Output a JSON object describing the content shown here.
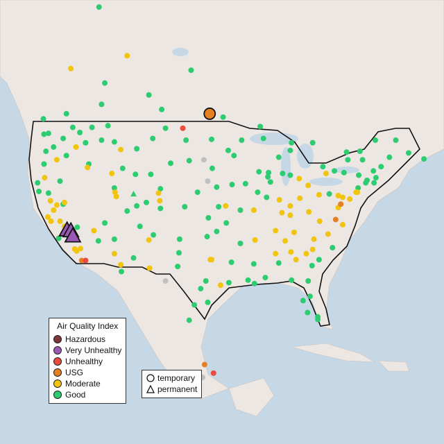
{
  "legend": {
    "title": "Air Quality Index",
    "categories": [
      {
        "label": "Hazardous",
        "color": "#7d3535"
      },
      {
        "label": "Very Unhealthy",
        "color": "#9b59b6"
      },
      {
        "label": "Unhealthy",
        "color": "#e74c3c"
      },
      {
        "label": "USG",
        "color": "#e67e22"
      },
      {
        "label": "Moderate",
        "color": "#f1c40f"
      },
      {
        "label": "Good",
        "color": "#2ecc71"
      }
    ],
    "no_data_color": "#c0c0c0"
  },
  "shape_legend": {
    "items": [
      {
        "label": "temporary",
        "icon": "circle-icon"
      },
      {
        "label": "permanent",
        "icon": "triangle-icon"
      }
    ]
  },
  "map": {
    "water_color": "#c6d7e6",
    "land_color": "#ede7e3",
    "sites": [
      [
        -123,
        47.5,
        "g",
        "c"
      ],
      [
        -122.3,
        47.6,
        "g",
        "c"
      ],
      [
        -122.7,
        45.5,
        "g",
        "c"
      ],
      [
        -123,
        44,
        "g",
        "c"
      ],
      [
        -121.5,
        46,
        "g",
        "c"
      ],
      [
        -120,
        47,
        "g",
        "c"
      ],
      [
        -117.4,
        47.7,
        "g",
        "c"
      ],
      [
        -116.5,
        46.5,
        "g",
        "c"
      ],
      [
        -118,
        46,
        "m",
        "c"
      ],
      [
        -119.5,
        45,
        "g",
        "c"
      ],
      [
        -121,
        44.5,
        "m",
        "c"
      ],
      [
        -122.9,
        42.4,
        "m",
        "c"
      ],
      [
        -120.5,
        42,
        "g",
        "c"
      ],
      [
        -116,
        44,
        "g",
        "c"
      ],
      [
        -114,
        46.8,
        "g",
        "c"
      ],
      [
        -112,
        46.6,
        "g",
        "c"
      ],
      [
        -111,
        45.7,
        "m",
        "c"
      ],
      [
        -108.5,
        45.8,
        "g",
        "c"
      ],
      [
        -106,
        47,
        "g",
        "c"
      ],
      [
        -104,
        48.2,
        "g",
        "c"
      ],
      [
        -113,
        48.5,
        "g",
        "c"
      ],
      [
        -115.5,
        48.3,
        "g",
        "c"
      ],
      [
        -118.5,
        48.3,
        "g",
        "c"
      ],
      [
        -122.4,
        37.8,
        "m",
        "c"
      ],
      [
        -121.9,
        37.3,
        "m",
        "c"
      ],
      [
        -121.5,
        38.6,
        "m",
        "c"
      ],
      [
        -120.5,
        37.3,
        "m",
        "c"
      ],
      [
        -119.8,
        36.7,
        "m",
        "c"
      ],
      [
        -119,
        35.4,
        "m",
        "c"
      ],
      [
        -119.4,
        36.3,
        "v",
        "t"
      ],
      [
        -118.8,
        36.2,
        "v",
        "t"
      ],
      [
        -118.5,
        35.6,
        "v",
        "t"
      ],
      [
        -119.7,
        36.0,
        "u",
        "c"
      ],
      [
        -118.2,
        34.05,
        "m",
        "c"
      ],
      [
        -117.9,
        33.8,
        "m",
        "c"
      ],
      [
        -117.3,
        34.1,
        "m",
        "c"
      ],
      [
        -117.1,
        32.7,
        "u",
        "c"
      ],
      [
        -116.5,
        32.7,
        "h",
        "c"
      ],
      [
        -120.7,
        35.3,
        "g",
        "c"
      ],
      [
        -122,
        39.7,
        "m",
        "c"
      ],
      [
        -122.3,
        40.6,
        "g",
        "c"
      ],
      [
        -123.8,
        40.8,
        "g",
        "c"
      ],
      [
        -124,
        41.8,
        "g",
        "c"
      ],
      [
        -121,
        39.2,
        "m",
        "c"
      ],
      [
        -120,
        39.3,
        "g",
        "c"
      ],
      [
        -119.8,
        39.5,
        "m",
        "c"
      ],
      [
        -117.8,
        36.6,
        "g",
        "c"
      ],
      [
        -115.2,
        36.2,
        "m",
        "c"
      ],
      [
        -114.5,
        35,
        "g",
        "c"
      ],
      [
        -112,
        33.5,
        "m",
        "c"
      ],
      [
        -111,
        32.2,
        "m",
        "c"
      ],
      [
        -110.9,
        31.4,
        "g",
        "c"
      ],
      [
        -112,
        35.2,
        "g",
        "c"
      ],
      [
        -109,
        33,
        "g",
        "c"
      ],
      [
        -106.6,
        35.1,
        "m",
        "c"
      ],
      [
        -106.5,
        31.8,
        "m",
        "c"
      ],
      [
        -105.9,
        35.7,
        "g",
        "c"
      ],
      [
        -108,
        36.7,
        "g",
        "c"
      ],
      [
        -104.9,
        39.7,
        "m",
        "c"
      ],
      [
        -105.1,
        40.6,
        "m",
        "c"
      ],
      [
        -104.8,
        38.8,
        "g",
        "c"
      ],
      [
        -107,
        39.5,
        "g",
        "c"
      ],
      [
        -108.5,
        39.1,
        "g",
        "c"
      ],
      [
        -111.9,
        40.7,
        "m",
        "c"
      ],
      [
        -111.7,
        40.2,
        "m",
        "c"
      ],
      [
        -112,
        41.2,
        "g",
        "c"
      ],
      [
        -113.5,
        37.1,
        "g",
        "c"
      ],
      [
        -110,
        38.5,
        "g",
        "c"
      ],
      [
        -109,
        40.5,
        "g",
        "t"
      ],
      [
        -104.8,
        41.1,
        "g",
        "c"
      ],
      [
        -106.3,
        42.8,
        "g",
        "c"
      ],
      [
        -108.7,
        42.8,
        "g",
        "c"
      ],
      [
        -110.7,
        43.5,
        "g",
        "c"
      ],
      [
        -112.4,
        42.9,
        "m",
        "c"
      ],
      [
        -116.2,
        43.6,
        "m",
        "c"
      ],
      [
        -103.2,
        44.1,
        "g",
        "c"
      ],
      [
        -100.3,
        44.4,
        "g",
        "c"
      ],
      [
        -96.7,
        43.5,
        "g",
        "c"
      ],
      [
        -101.3,
        48.2,
        "h",
        "c"
      ],
      [
        -100.8,
        46.8,
        "g",
        "c"
      ],
      [
        -96.8,
        46.9,
        "g",
        "c"
      ],
      [
        -98,
        44.5,
        "n",
        "c"
      ],
      [
        -97.4,
        42,
        "n",
        "c"
      ],
      [
        -96,
        41.3,
        "g",
        "c"
      ],
      [
        -99,
        40.7,
        "g",
        "c"
      ],
      [
        -101,
        39,
        "g",
        "c"
      ],
      [
        -97.3,
        37.7,
        "g",
        "c"
      ],
      [
        -95.7,
        39,
        "g",
        "c"
      ],
      [
        -94.6,
        39.1,
        "m",
        "c"
      ],
      [
        -97.5,
        35.5,
        "g",
        "c"
      ],
      [
        -96,
        36.1,
        "g",
        "c"
      ],
      [
        -101.8,
        35.2,
        "g",
        "c"
      ],
      [
        -101.9,
        33.6,
        "g",
        "c"
      ],
      [
        -97,
        32.8,
        "m",
        "c"
      ],
      [
        -96.8,
        32.8,
        "m",
        "c"
      ],
      [
        -97.7,
        30.3,
        "g",
        "c"
      ],
      [
        -98.5,
        29.4,
        "g",
        "c"
      ],
      [
        -95.4,
        29.8,
        "m",
        "c"
      ],
      [
        -94.1,
        30.1,
        "g",
        "c"
      ],
      [
        -97.4,
        27.8,
        "g",
        "c"
      ],
      [
        -99.5,
        27.5,
        "g",
        "c"
      ],
      [
        -102.1,
        32,
        "g",
        "c"
      ],
      [
        -104,
        30.3,
        "n",
        "c"
      ],
      [
        -93.3,
        45,
        "g",
        "c"
      ],
      [
        -92.1,
        46.8,
        "g",
        "c"
      ],
      [
        -94.2,
        45.6,
        "g",
        "c"
      ],
      [
        -93.6,
        41.6,
        "g",
        "c"
      ],
      [
        -91.5,
        41.7,
        "g",
        "c"
      ],
      [
        -90.2,
        38.6,
        "m",
        "c"
      ],
      [
        -92.3,
        38.6,
        "g",
        "c"
      ],
      [
        -94.5,
        37.1,
        "g",
        "c"
      ],
      [
        -92.3,
        34.7,
        "g",
        "c"
      ],
      [
        -90,
        35.1,
        "m",
        "c"
      ],
      [
        -91.1,
        30.4,
        "g",
        "c"
      ],
      [
        -90.1,
        30,
        "g",
        "c"
      ],
      [
        -93.7,
        32.5,
        "g",
        "c"
      ],
      [
        -90.2,
        32.3,
        "g",
        "c"
      ],
      [
        -88.4,
        30.7,
        "g",
        "c"
      ],
      [
        -86.8,
        33.5,
        "m",
        "c"
      ],
      [
        -86.3,
        32.4,
        "g",
        "c"
      ],
      [
        -84.4,
        33.7,
        "m",
        "c"
      ],
      [
        -83.6,
        32.8,
        "m",
        "c"
      ],
      [
        -81.1,
        32.1,
        "g",
        "c"
      ],
      [
        -82,
        33.5,
        "m",
        "c"
      ],
      [
        -81,
        34,
        "m",
        "c"
      ],
      [
        -80,
        32.8,
        "g",
        "c"
      ],
      [
        -84.3,
        30.4,
        "g",
        "c"
      ],
      [
        -81.7,
        30.3,
        "g",
        "c"
      ],
      [
        -82.5,
        28,
        "g",
        "c"
      ],
      [
        -81.4,
        28.5,
        "g",
        "c"
      ],
      [
        -80.2,
        26.1,
        "g",
        "c"
      ],
      [
        -80.2,
        25.8,
        "g",
        "c"
      ],
      [
        -81.8,
        26.6,
        "g",
        "c"
      ],
      [
        -86.8,
        36.2,
        "m",
        "c"
      ],
      [
        -85.3,
        35,
        "m",
        "c"
      ],
      [
        -83.9,
        36,
        "m",
        "c"
      ],
      [
        -85.8,
        38.3,
        "m",
        "c"
      ],
      [
        -84.5,
        38,
        "m",
        "c"
      ],
      [
        -84.5,
        39.1,
        "m",
        "c"
      ],
      [
        -83,
        40,
        "m",
        "c"
      ],
      [
        -81.7,
        41.5,
        "m",
        "c"
      ],
      [
        -86.2,
        39.8,
        "m",
        "c"
      ],
      [
        -87.6,
        41.9,
        "g",
        "c"
      ],
      [
        -88,
        42.5,
        "g",
        "c"
      ],
      [
        -87.9,
        43,
        "g",
        "c"
      ],
      [
        -89.4,
        43.1,
        "g",
        "c"
      ],
      [
        -89.6,
        40.7,
        "g",
        "c"
      ],
      [
        -88.2,
        40.1,
        "g",
        "c"
      ],
      [
        -83.1,
        42.3,
        "m",
        "c"
      ],
      [
        -84.5,
        42.7,
        "g",
        "c"
      ],
      [
        -85.7,
        42.9,
        "g",
        "c"
      ],
      [
        -86.3,
        44.8,
        "g",
        "c"
      ],
      [
        -84.5,
        45.6,
        "g",
        "c"
      ],
      [
        -88.7,
        47,
        "g",
        "c"
      ],
      [
        -80,
        40.4,
        "m",
        "c"
      ],
      [
        -81.6,
        38.4,
        "m",
        "c"
      ],
      [
        -80.8,
        35.2,
        "m",
        "c"
      ],
      [
        -78.6,
        35.8,
        "m",
        "c"
      ],
      [
        -77.9,
        34.2,
        "g",
        "c"
      ],
      [
        -79.9,
        37.3,
        "m",
        "c"
      ],
      [
        -77.4,
        37.5,
        "u",
        "c"
      ],
      [
        -76.3,
        36.9,
        "m",
        "c"
      ],
      [
        -77,
        38.9,
        "m",
        "c"
      ],
      [
        -76.6,
        39.3,
        "u",
        "c"
      ],
      [
        -75.2,
        39.9,
        "m",
        "c"
      ],
      [
        -74.2,
        40.7,
        "m",
        "c"
      ],
      [
        -74,
        40.7,
        "m",
        "c"
      ],
      [
        -73.9,
        41.2,
        "g",
        "c"
      ],
      [
        -72.7,
        41.8,
        "g",
        "c"
      ],
      [
        -71.4,
        41.8,
        "g",
        "c"
      ],
      [
        -71.1,
        42.4,
        "g",
        "c"
      ],
      [
        -72.5,
        42.1,
        "g",
        "c"
      ],
      [
        -73.8,
        42.7,
        "g",
        "c"
      ],
      [
        -76.1,
        43,
        "g",
        "c"
      ],
      [
        -77.6,
        43.2,
        "g",
        "c"
      ],
      [
        -78.9,
        42.9,
        "m",
        "c"
      ],
      [
        -75.5,
        44.5,
        "g",
        "c"
      ],
      [
        -73.2,
        44.5,
        "g",
        "c"
      ],
      [
        -71.5,
        43.2,
        "g",
        "c"
      ],
      [
        -70.3,
        43.7,
        "g",
        "c"
      ],
      [
        -69,
        44.8,
        "g",
        "c"
      ],
      [
        -68,
        46.8,
        "g",
        "c"
      ],
      [
        -77,
        40.3,
        "m",
        "c"
      ],
      [
        -76.3,
        40.1,
        "m",
        "c"
      ],
      [
        -78.4,
        40.5,
        "g",
        "c"
      ],
      [
        -123.1,
        49.3,
        "g",
        "c"
      ],
      [
        -119.5,
        49.9,
        "g",
        "c"
      ],
      [
        -114,
        51,
        "g",
        "c"
      ],
      [
        -113.5,
        53.5,
        "g",
        "c"
      ],
      [
        -106.6,
        52.1,
        "g",
        "c"
      ],
      [
        -104.6,
        50.4,
        "g",
        "c"
      ],
      [
        -97.1,
        49.9,
        "o",
        "c"
      ],
      [
        -95,
        49.5,
        "g",
        "c"
      ],
      [
        -89.2,
        48.4,
        "g",
        "c"
      ],
      [
        -84.3,
        46.5,
        "g",
        "c"
      ],
      [
        -81,
        46.5,
        "g",
        "c"
      ],
      [
        -79.4,
        43.7,
        "g",
        "c"
      ],
      [
        -75.7,
        45.4,
        "g",
        "c"
      ],
      [
        -73.6,
        45.5,
        "g",
        "c"
      ],
      [
        -71.2,
        46.8,
        "g",
        "c"
      ],
      [
        -66,
        45.3,
        "g",
        "c"
      ],
      [
        -63.6,
        44.6,
        "g",
        "c"
      ],
      [
        -118.8,
        55.2,
        "m",
        "c"
      ],
      [
        -114.4,
        62.4,
        "g",
        "c"
      ],
      [
        -110,
        56.7,
        "m",
        "c"
      ],
      [
        -100,
        55,
        "g",
        "c"
      ],
      [
        -99.1,
        19.4,
        "g",
        "c"
      ],
      [
        -98.2,
        19.0,
        "n",
        "c"
      ],
      [
        -97.9,
        20.5,
        "u",
        "c"
      ],
      [
        -96.5,
        19.5,
        "h",
        "c"
      ],
      [
        -100.3,
        25.7,
        "g",
        "c"
      ]
    ]
  }
}
